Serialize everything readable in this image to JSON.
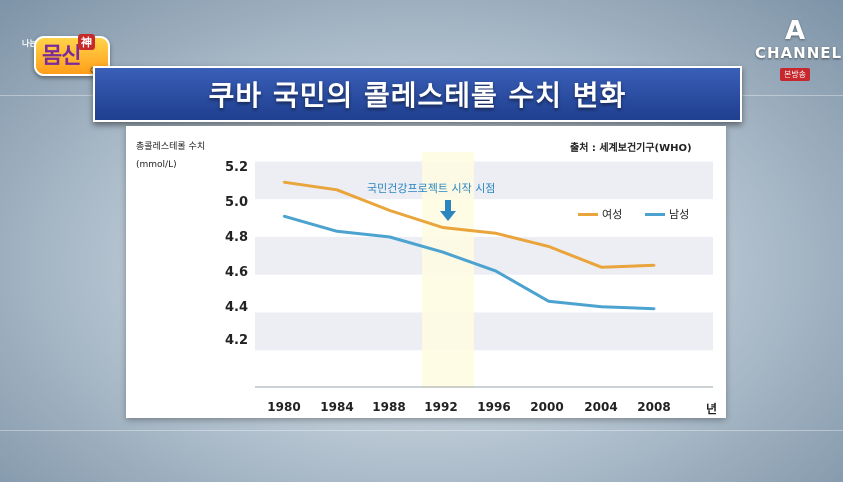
{
  "logo_left": {
    "top_small": "나는",
    "main": "몸신",
    "tag": "神",
    "bottom_small": "이다"
  },
  "channel_logo": {
    "mark": "A",
    "word": "CHANNEL",
    "sub": "본방송"
  },
  "title": "쿠바 국민의 콜레스테롤 수치 변화",
  "chart_data": {
    "type": "line",
    "ylabel_line1": "총콜레스테롤 수치",
    "ylabel_line2": "(mmol/L)",
    "source": "출처 : 세계보건기구(WHO)",
    "x_unit": "년",
    "categories": [
      "1980",
      "1984",
      "1988",
      "1992",
      "1996",
      "2000",
      "2004",
      "2008"
    ],
    "yticks": [
      "5.2",
      "5.0",
      "4.8",
      "4.6",
      "4.4",
      "4.2"
    ],
    "ylim": [
      4.0,
      5.25
    ],
    "series": [
      {
        "name": "여성",
        "color": "#e9a53b",
        "values": [
          5.09,
          5.05,
          4.94,
          4.85,
          4.82,
          4.75,
          4.64,
          4.65
        ]
      },
      {
        "name": "남성",
        "color": "#4ca3cf",
        "values": [
          4.91,
          4.83,
          4.8,
          4.72,
          4.62,
          4.46,
          4.43,
          4.42
        ]
      }
    ],
    "annotation": {
      "text": "국민건강프로젝트 시작 시점",
      "at": "1992"
    },
    "grid": "horizontal bands"
  }
}
